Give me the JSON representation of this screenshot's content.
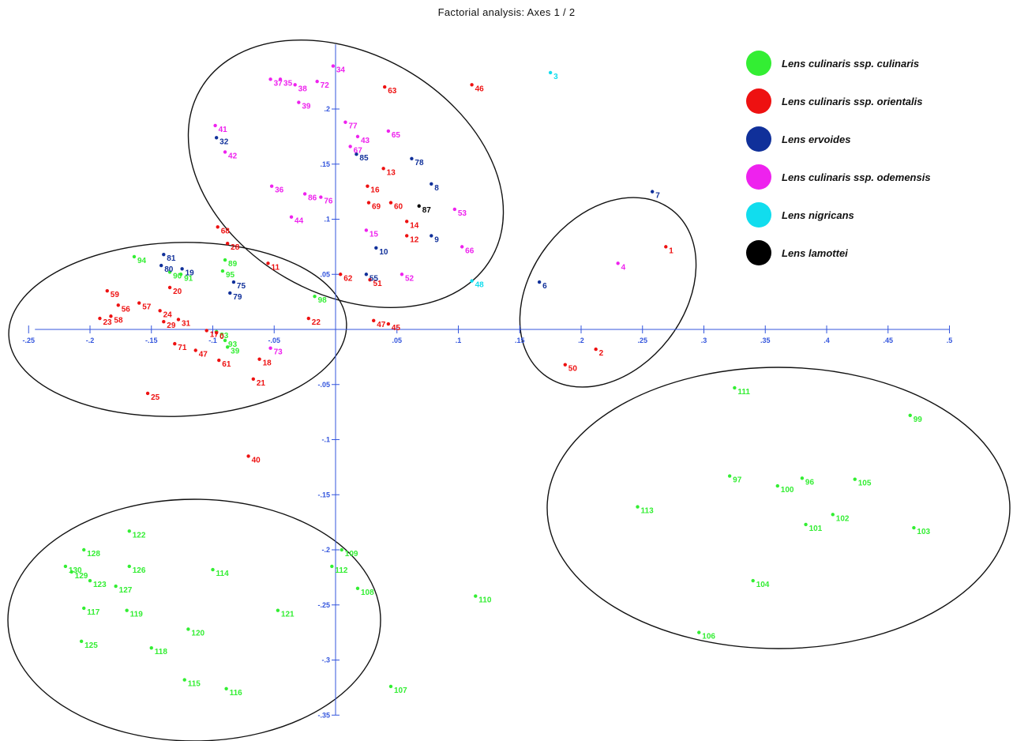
{
  "chart_data": {
    "type": "scatter",
    "title": "Factorial analysis: Axes 1 / 2",
    "xlabel": "",
    "ylabel": "",
    "xlim": [
      -0.25,
      0.5
    ],
    "ylim": [
      -0.35,
      0.25
    ],
    "x_ticks": [
      {
        "value": -0.25,
        "label": "-.25"
      },
      {
        "value": -0.2,
        "label": "-.2"
      },
      {
        "value": -0.15,
        "label": "-.15"
      },
      {
        "value": -0.1,
        "label": "-.1"
      },
      {
        "value": -0.05,
        "label": "-.05"
      },
      {
        "value": 0.05,
        "label": ".05"
      },
      {
        "value": 0.1,
        "label": ".1"
      },
      {
        "value": 0.15,
        "label": ".15"
      },
      {
        "value": 0.2,
        "label": ".2"
      },
      {
        "value": 0.25,
        "label": ".25"
      },
      {
        "value": 0.3,
        "label": ".3"
      },
      {
        "value": 0.35,
        "label": ".35"
      },
      {
        "value": 0.4,
        "label": ".4"
      },
      {
        "value": 0.45,
        "label": ".45"
      },
      {
        "value": 0.5,
        "label": ".5"
      }
    ],
    "y_ticks": [
      {
        "value": 0.2,
        "label": ".2"
      },
      {
        "value": 0.15,
        "label": ".15"
      },
      {
        "value": 0.1,
        "label": ".1"
      },
      {
        "value": 0.05,
        "label": ".05"
      },
      {
        "value": -0.05,
        "label": "-.05"
      },
      {
        "value": -0.1,
        "label": "-.1"
      },
      {
        "value": -0.15,
        "label": "-.15"
      },
      {
        "value": -0.2,
        "label": "-.2"
      },
      {
        "value": -0.25,
        "label": "-.25"
      },
      {
        "value": -0.3,
        "label": "-.3"
      },
      {
        "value": -0.35,
        "label": "-.35"
      }
    ],
    "grid": false,
    "legend_position": "top-right",
    "colors": {
      "culinaris": "#33ee33",
      "orientalis": "#ee1111",
      "ervoides": "#10309a",
      "odemensis": "#ee22ee",
      "nigricans": "#11ddee",
      "lamottei": "#000000",
      "axis": "#3355dd"
    },
    "series": [
      {
        "name": "Lens culinaris ssp. culinaris",
        "key": "culinaris",
        "points": [
          {
            "label": "111",
            "x": 0.325,
            "y": -0.053
          },
          {
            "label": "99",
            "x": 0.468,
            "y": -0.078
          },
          {
            "label": "97",
            "x": 0.321,
            "y": -0.133
          },
          {
            "label": "96",
            "x": 0.38,
            "y": -0.135
          },
          {
            "label": "100",
            "x": 0.36,
            "y": -0.142
          },
          {
            "label": "105",
            "x": 0.423,
            "y": -0.136
          },
          {
            "label": "113",
            "x": 0.246,
            "y": -0.161
          },
          {
            "label": "102",
            "x": 0.405,
            "y": -0.168
          },
          {
            "label": "101",
            "x": 0.383,
            "y": -0.177
          },
          {
            "label": "103",
            "x": 0.471,
            "y": -0.18
          },
          {
            "label": "104",
            "x": 0.34,
            "y": -0.228
          },
          {
            "label": "106",
            "x": 0.296,
            "y": -0.275
          },
          {
            "label": "109",
            "x": 0.005,
            "y": -0.2
          },
          {
            "label": "112",
            "x": -0.003,
            "y": -0.215
          },
          {
            "label": "108",
            "x": 0.018,
            "y": -0.235
          },
          {
            "label": "110",
            "x": 0.114,
            "y": -0.242
          },
          {
            "label": "107",
            "x": 0.045,
            "y": -0.324
          },
          {
            "label": "122",
            "x": -0.168,
            "y": -0.183
          },
          {
            "label": "128",
            "x": -0.205,
            "y": -0.2
          },
          {
            "label": "126",
            "x": -0.168,
            "y": -0.215
          },
          {
            "label": "114",
            "x": -0.1,
            "y": -0.218
          },
          {
            "label": "130",
            "x": -0.22,
            "y": -0.215
          },
          {
            "label": "129",
            "x": -0.215,
            "y": -0.22
          },
          {
            "label": "123",
            "x": -0.2,
            "y": -0.228
          },
          {
            "label": "127",
            "x": -0.179,
            "y": -0.233
          },
          {
            "label": "117",
            "x": -0.205,
            "y": -0.253
          },
          {
            "label": "119",
            "x": -0.17,
            "y": -0.255
          },
          {
            "label": "121",
            "x": -0.047,
            "y": -0.255
          },
          {
            "label": "120",
            "x": -0.12,
            "y": -0.272
          },
          {
            "label": "125",
            "x": -0.207,
            "y": -0.283
          },
          {
            "label": "118",
            "x": -0.15,
            "y": -0.289
          },
          {
            "label": "115",
            "x": -0.123,
            "y": -0.318
          },
          {
            "label": "116",
            "x": -0.089,
            "y": -0.326
          },
          {
            "label": "94",
            "x": -0.164,
            "y": 0.066
          },
          {
            "label": "90",
            "x": -0.135,
            "y": 0.052
          },
          {
            "label": "91",
            "x": -0.126,
            "y": 0.05
          },
          {
            "label": "89",
            "x": -0.09,
            "y": 0.063
          },
          {
            "label": "95",
            "x": -0.092,
            "y": 0.053
          },
          {
            "label": "98",
            "x": -0.017,
            "y": 0.03
          },
          {
            "label": "93",
            "x": -0.09,
            "y": -0.01
          },
          {
            "label": "83",
            "x": -0.097,
            "y": -0.002
          },
          {
            "label": "39",
            "x": -0.088,
            "y": -0.016
          }
        ]
      },
      {
        "name": "Lens culinaris ssp. orientalis",
        "key": "orientalis",
        "points": [
          {
            "label": "63",
            "x": 0.04,
            "y": 0.22
          },
          {
            "label": "46",
            "x": 0.111,
            "y": 0.222
          },
          {
            "label": "13",
            "x": 0.039,
            "y": 0.146
          },
          {
            "label": "16",
            "x": 0.026,
            "y": 0.13
          },
          {
            "label": "69",
            "x": 0.027,
            "y": 0.115
          },
          {
            "label": "60",
            "x": 0.045,
            "y": 0.115
          },
          {
            "label": "14",
            "x": 0.058,
            "y": 0.098
          },
          {
            "label": "12",
            "x": 0.058,
            "y": 0.085
          },
          {
            "label": "11",
            "x": -0.055,
            "y": 0.06
          },
          {
            "label": "62",
            "x": 0.004,
            "y": 0.05
          },
          {
            "label": "51",
            "x": 0.028,
            "y": 0.045
          },
          {
            "label": "68",
            "x": -0.096,
            "y": 0.093
          },
          {
            "label": "28",
            "x": -0.088,
            "y": 0.078
          },
          {
            "label": "59",
            "x": -0.186,
            "y": 0.035
          },
          {
            "label": "56",
            "x": -0.177,
            "y": 0.022
          },
          {
            "label": "57",
            "x": -0.16,
            "y": 0.024
          },
          {
            "label": "23",
            "x": -0.192,
            "y": 0.01
          },
          {
            "label": "58",
            "x": -0.183,
            "y": 0.012
          },
          {
            "label": "24",
            "x": -0.143,
            "y": 0.017
          },
          {
            "label": "29",
            "x": -0.14,
            "y": 0.007
          },
          {
            "label": "31",
            "x": -0.128,
            "y": 0.009
          },
          {
            "label": "20",
            "x": -0.135,
            "y": 0.038
          },
          {
            "label": "17",
            "x": -0.105,
            "y": -0.001
          },
          {
            "label": "0",
            "x": -0.097,
            "y": -0.003
          },
          {
            "label": "71",
            "x": -0.131,
            "y": -0.013
          },
          {
            "label": "47",
            "x": -0.114,
            "y": -0.019
          },
          {
            "label": "61",
            "x": -0.095,
            "y": -0.028
          },
          {
            "label": "18",
            "x": -0.062,
            "y": -0.027
          },
          {
            "label": "21",
            "x": -0.067,
            "y": -0.045
          },
          {
            "label": "25",
            "x": -0.153,
            "y": -0.058
          },
          {
            "label": "22",
            "x": -0.022,
            "y": 0.01
          },
          {
            "label": "47",
            "x": 0.031,
            "y": 0.008
          },
          {
            "label": "45",
            "x": 0.043,
            "y": 0.005
          },
          {
            "label": "40",
            "x": -0.071,
            "y": -0.115
          },
          {
            "label": "1",
            "x": 0.269,
            "y": 0.075
          },
          {
            "label": "2",
            "x": 0.212,
            "y": -0.018
          },
          {
            "label": "50",
            "x": 0.187,
            "y": -0.032
          }
        ]
      },
      {
        "name": "Lens ervoides",
        "key": "ervoides",
        "points": [
          {
            "label": "78",
            "x": 0.062,
            "y": 0.155
          },
          {
            "label": "8",
            "x": 0.078,
            "y": 0.132
          },
          {
            "label": "85",
            "x": 0.017,
            "y": 0.159
          },
          {
            "label": "9",
            "x": 0.078,
            "y": 0.085
          },
          {
            "label": "10",
            "x": 0.033,
            "y": 0.074
          },
          {
            "label": "55",
            "x": 0.025,
            "y": 0.05
          },
          {
            "label": "32",
            "x": -0.097,
            "y": 0.174
          },
          {
            "label": "81",
            "x": -0.14,
            "y": 0.068
          },
          {
            "label": "80",
            "x": -0.142,
            "y": 0.058
          },
          {
            "label": "19",
            "x": -0.125,
            "y": 0.055
          },
          {
            "label": "79",
            "x": -0.086,
            "y": 0.033
          },
          {
            "label": "75",
            "x": -0.083,
            "y": 0.043
          },
          {
            "label": "7",
            "x": 0.258,
            "y": 0.125
          },
          {
            "label": "6",
            "x": 0.166,
            "y": 0.043
          }
        ]
      },
      {
        "name": "Lens culinaris ssp. odemensis",
        "key": "odemensis",
        "points": [
          {
            "label": "34",
            "x": -0.002,
            "y": 0.239
          },
          {
            "label": "37",
            "x": -0.053,
            "y": 0.227
          },
          {
            "label": "35",
            "x": -0.045,
            "y": 0.227
          },
          {
            "label": "38",
            "x": -0.033,
            "y": 0.222
          },
          {
            "label": "72",
            "x": -0.015,
            "y": 0.225
          },
          {
            "label": "39",
            "x": -0.03,
            "y": 0.206
          },
          {
            "label": "41",
            "x": -0.098,
            "y": 0.185
          },
          {
            "label": "42",
            "x": -0.09,
            "y": 0.161
          },
          {
            "label": "77",
            "x": 0.008,
            "y": 0.188
          },
          {
            "label": "43",
            "x": 0.018,
            "y": 0.175
          },
          {
            "label": "65",
            "x": 0.043,
            "y": 0.18
          },
          {
            "label": "67",
            "x": 0.012,
            "y": 0.166
          },
          {
            "label": "36",
            "x": -0.052,
            "y": 0.13
          },
          {
            "label": "86",
            "x": -0.025,
            "y": 0.123
          },
          {
            "label": "76",
            "x": -0.012,
            "y": 0.12
          },
          {
            "label": "44",
            "x": -0.036,
            "y": 0.102
          },
          {
            "label": "15",
            "x": 0.025,
            "y": 0.09
          },
          {
            "label": "52",
            "x": 0.054,
            "y": 0.05
          },
          {
            "label": "53",
            "x": 0.097,
            "y": 0.109
          },
          {
            "label": "66",
            "x": 0.103,
            "y": 0.075
          },
          {
            "label": "73",
            "x": -0.053,
            "y": -0.017
          },
          {
            "label": "4",
            "x": 0.23,
            "y": 0.06
          }
        ]
      },
      {
        "name": "Lens nigricans",
        "key": "nigricans",
        "points": [
          {
            "label": "3",
            "x": 0.175,
            "y": 0.233
          },
          {
            "label": "48",
            "x": 0.111,
            "y": 0.044
          }
        ]
      },
      {
        "name": "Lens lamottei",
        "key": "lamottei",
        "points": [
          {
            "label": "87",
            "x": 0.068,
            "y": 0.112
          }
        ]
      }
    ]
  }
}
